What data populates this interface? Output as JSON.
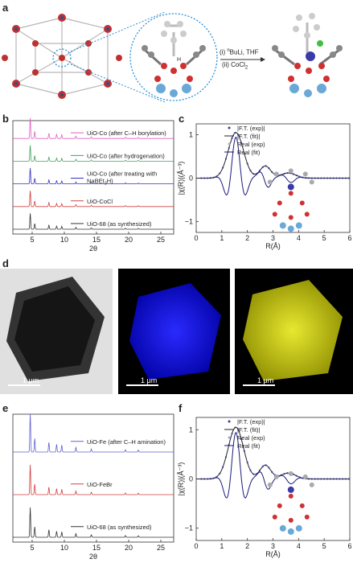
{
  "panels": {
    "a": {
      "letter": "a",
      "reaction_step1_prefix": "(i) ",
      "reaction_step1_sup": "n",
      "reaction_step1_rest": "BuLi, THF",
      "reaction_step2_prefix": "(ii) CoCl",
      "reaction_step2_sub": "2"
    },
    "b": {
      "letter": "b",
      "xlabel": "2θ",
      "xticks": [
        "5",
        "10",
        "15",
        "20",
        "25"
      ],
      "legend": [
        {
          "label": "UiO-Co (after C–H borylation)",
          "color": "#e060c0"
        },
        {
          "label": "UiO-Co (after hydrogenation)",
          "color": "#40a060"
        },
        {
          "label_line1": "UiO-Co (after treating with",
          "label_line2_prefix": "NaBEt",
          "label_line2_sub": "3",
          "label_line2_suffix": "H)",
          "color": "#3030c0"
        },
        {
          "label": "UiO-CoCl",
          "color": "#d04040"
        },
        {
          "label": "UiO-68 (as synthesized)",
          "color": "#333333"
        }
      ]
    },
    "c": {
      "letter": "c",
      "ylabel": "|χ(R)|(Å⁻³)",
      "xlabel": "R(Å)",
      "xticks": [
        "0",
        "1",
        "2",
        "3",
        "4",
        "5",
        "6"
      ],
      "yticks": [
        "1",
        "0",
        "−1"
      ],
      "legend": [
        "|F.T. (exp)|",
        "|F.T. (fit)|",
        "Real (exp)",
        "Real (fit)"
      ]
    },
    "d": {
      "letter": "d",
      "scale_label": "1 μm",
      "colors": [
        "#000000",
        "#0000ff",
        "#dddd00"
      ]
    },
    "e": {
      "letter": "e",
      "xlabel": "2θ",
      "xticks": [
        "5",
        "10",
        "15",
        "20",
        "25"
      ],
      "legend": [
        {
          "label": "UiO-Fe (after C–H amination)",
          "color": "#6060d0"
        },
        {
          "label": "UiO-FeBr",
          "color": "#d04040"
        },
        {
          "label": "UiO-68 (as synthesized)",
          "color": "#333333"
        }
      ]
    },
    "f": {
      "letter": "f",
      "ylabel": "|χ(R)|(Å⁻³)",
      "xlabel": "R(Å)",
      "xticks": [
        "0",
        "1",
        "2",
        "3",
        "4",
        "5",
        "6"
      ],
      "yticks": [
        "1",
        "0",
        "−1"
      ],
      "legend": [
        "|F.T. (exp)|",
        "|F.T. (fit)|",
        "Real (exp)",
        "Real (fit)"
      ]
    }
  }
}
